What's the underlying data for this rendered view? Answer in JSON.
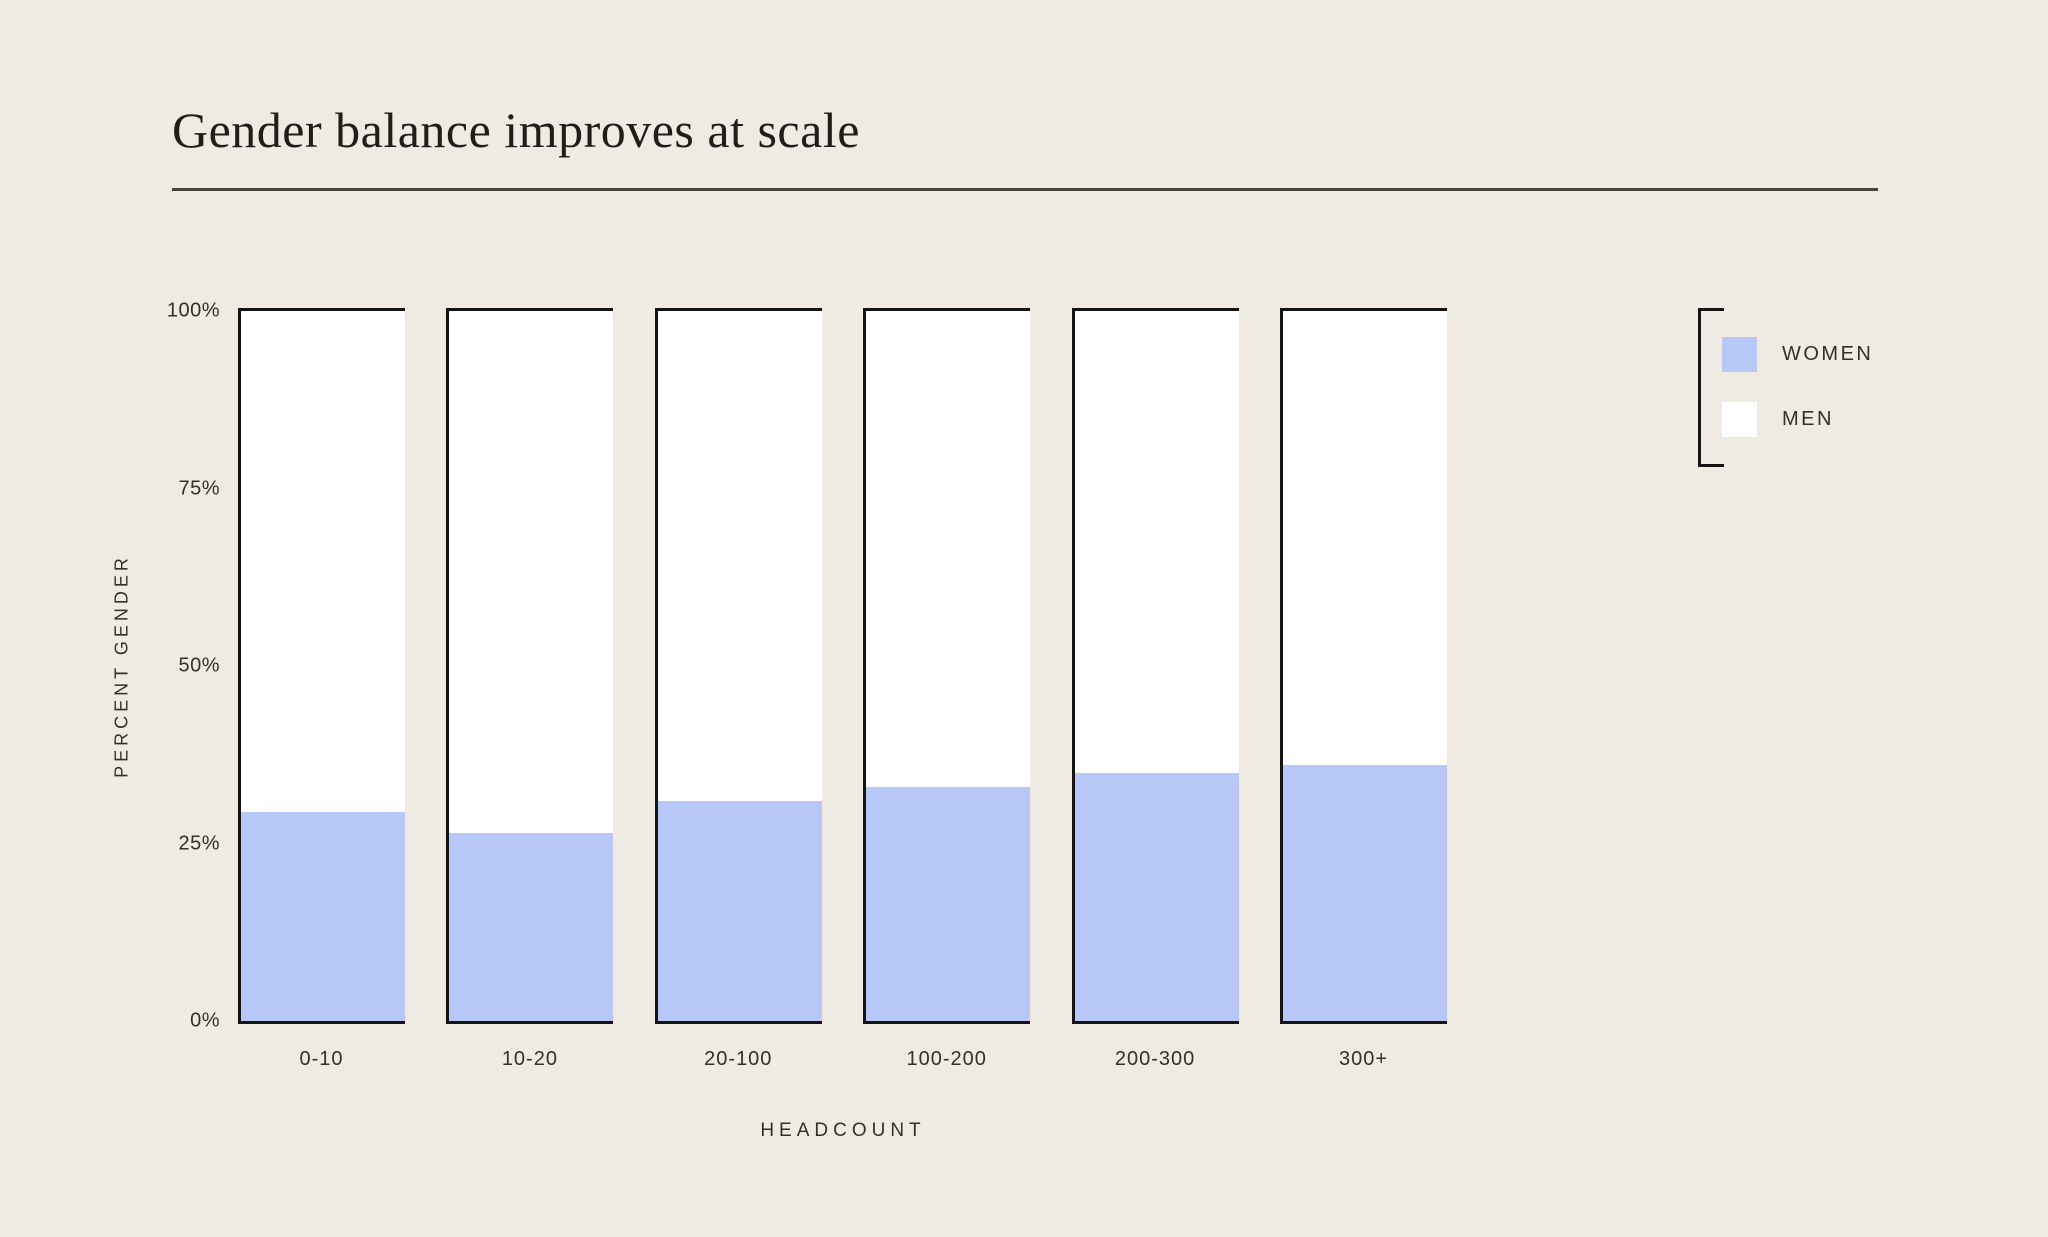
{
  "chart": {
    "title": "Gender balance improves at scale",
    "x_axis_label": "HEADCOUNT",
    "y_axis_label": "PERCENT GENDER"
  },
  "legend": {
    "position": "right",
    "items": [
      {
        "label": "WOMEN",
        "color": "#B7C7F8"
      },
      {
        "label": "MEN",
        "color": "#FFFFFF"
      }
    ]
  },
  "chart_data": {
    "type": "bar",
    "stacked": true,
    "title": "Gender balance improves at scale",
    "xlabel": "HEADCOUNT",
    "ylabel": "PERCENT GENDER",
    "categories": [
      "0-10",
      "10-20",
      "20-100",
      "100-200",
      "200-300",
      "300+"
    ],
    "series": [
      {
        "name": "WOMEN",
        "values": [
          29.5,
          26.5,
          31,
          33,
          35,
          36
        ],
        "color": "#B7C7F8"
      },
      {
        "name": "MEN",
        "values": [
          70.5,
          73.5,
          69,
          67,
          65,
          64
        ],
        "color": "#FFFFFF"
      }
    ],
    "ylim": [
      0,
      100
    ],
    "y_ticks": [
      {
        "label": "0%",
        "value": 0
      },
      {
        "label": "25%",
        "value": 25
      },
      {
        "label": "50%",
        "value": 50
      },
      {
        "label": "75%",
        "value": 75
      },
      {
        "label": "100%",
        "value": 100
      }
    ],
    "grid": false,
    "legend_position": "right"
  },
  "colors": {
    "background": "#EFEAE2",
    "bar_outline": "#141414",
    "women_fill": "#B7C7F8",
    "men_fill": "#FFFFFF",
    "title_text": "#201E1A",
    "label_text": "#32302B",
    "rule": "#45423B"
  }
}
